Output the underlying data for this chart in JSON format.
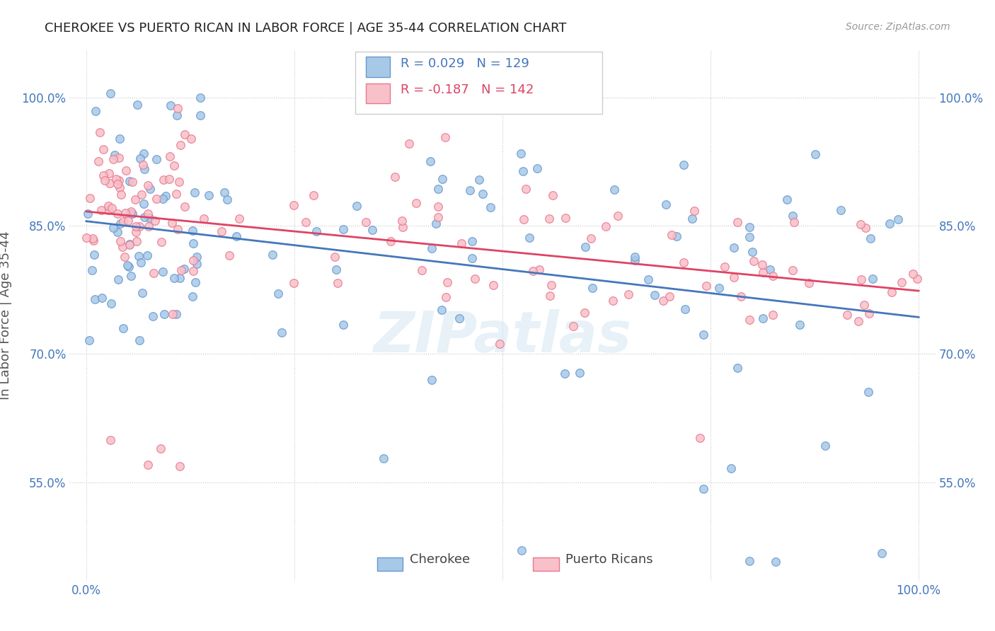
{
  "title": "CHEROKEE VS PUERTO RICAN IN LABOR FORCE | AGE 35-44 CORRELATION CHART",
  "source": "Source: ZipAtlas.com",
  "ylabel": "In Labor Force | Age 35-44",
  "ytick_labels": [
    "55.0%",
    "70.0%",
    "85.0%",
    "100.0%"
  ],
  "ytick_values": [
    0.55,
    0.7,
    0.85,
    1.0
  ],
  "xtick_labels": [
    "0.0%",
    "100.0%"
  ],
  "xtick_values": [
    0.0,
    1.0
  ],
  "xlim": [
    -0.02,
    1.02
  ],
  "ylim": [
    0.435,
    1.055
  ],
  "cherokee_color": "#a8c8e8",
  "cherokee_edge": "#6699cc",
  "puertoRican_color": "#f8c0c8",
  "puertoRican_edge": "#e87890",
  "trend_cherokee_color": "#4477bb",
  "trend_pr_color": "#dd4466",
  "R_cherokee": 0.029,
  "N_cherokee": 129,
  "R_pr": -0.187,
  "N_pr": 142,
  "watermark": "ZIPatlas",
  "legend_labels": [
    "Cherokee",
    "Puerto Ricans"
  ],
  "background_color": "#ffffff",
  "grid_color": "#c8c8c8",
  "tick_color": "#4477bb",
  "ylabel_color": "#555555"
}
